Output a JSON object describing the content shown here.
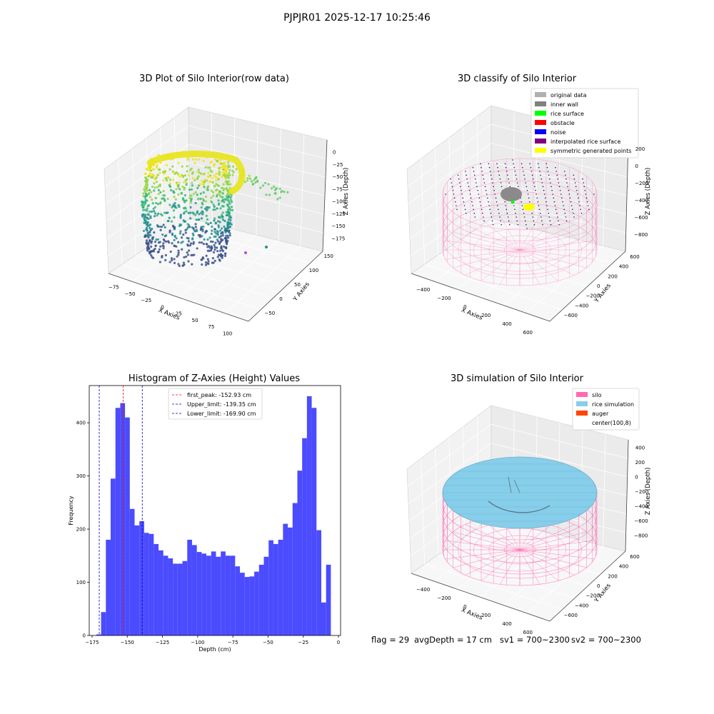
{
  "suptitle": "PJPJR01 2025-12-17 10:25:46",
  "panels": {
    "raw": {
      "title": "3D Plot of Silo Interior(row data)",
      "xlabel": "X Axies",
      "ylabel": "Y Axies",
      "zlabel": "Z Axies (Depth)",
      "xticks": [
        "−75",
        "−50",
        "−25",
        "0",
        "25",
        "50",
        "75",
        "100"
      ],
      "yticks": [
        "−50",
        "0",
        "50",
        "100",
        "150"
      ],
      "zticks": [
        "0",
        "−25",
        "−50",
        "−75",
        "−100",
        "−125",
        "−150",
        "−175"
      ]
    },
    "classify": {
      "title": "3D classify of Silo Interior",
      "xlabel": "X Axies",
      "ylabel": "Y Axies",
      "zlabel": "Z Axies (Depth)",
      "xticks": [
        "−400",
        "−200",
        "0",
        "200",
        "400",
        "600"
      ],
      "yticks": [
        "−600",
        "−400",
        "−200",
        "0",
        "200",
        "400",
        "600"
      ],
      "zticks": [
        "200",
        "0",
        "−200",
        "−400",
        "−600",
        "−800"
      ],
      "legend": [
        {
          "label": "original data",
          "color": "#b0b0b0"
        },
        {
          "label": "inner wall",
          "color": "#808080"
        },
        {
          "label": "rice surface",
          "color": "#00ff00"
        },
        {
          "label": "obstacle",
          "color": "#ff0000"
        },
        {
          "label": "noise",
          "color": "#0000ff"
        },
        {
          "label": "interpolated rice surface",
          "color": "#800080"
        },
        {
          "label": "symmetric generated points",
          "color": "#ffff00"
        }
      ]
    },
    "simulation": {
      "title": "3D simulation of Silo Interior",
      "xlabel": "X Axies",
      "ylabel": "Y Axies",
      "zlabel": "Z Axies (Depth)",
      "xticks": [
        "−400",
        "−200",
        "0",
        "200",
        "400",
        "600"
      ],
      "yticks": [
        "−600",
        "−400",
        "−200",
        "0",
        "200",
        "400",
        "600"
      ],
      "zticks": [
        "400",
        "200",
        "0",
        "−200",
        "−400",
        "−600",
        "−800"
      ],
      "legend": [
        {
          "label": "silo",
          "color": "#ff69b4"
        },
        {
          "label": "rice simulation",
          "color": "#87ceeb"
        },
        {
          "label": "auger",
          "color": "#ff4500"
        },
        {
          "label": "center(100,8)",
          "color": "#ffffff"
        }
      ]
    }
  },
  "status": {
    "flag": "flag = 29",
    "avg": "avgDepth = 17 cm",
    "sv1": "sv1 = 700~2300",
    "sv2": "sv2 = 700~2300"
  },
  "chart_data": {
    "type": "bar",
    "title": "Histogram of Z-Axies (Height) Values",
    "xlabel": "Depth (cm)",
    "ylabel": "Frequency",
    "xlim": [
      -177,
      1.5
    ],
    "ylim": [
      0,
      470
    ],
    "bar_color": "#4b4bff",
    "bin_start": -172,
    "bin_width": 3.4,
    "xticks": [
      -175,
      -150,
      -125,
      -100,
      -75,
      -50,
      -25,
      0
    ],
    "xtick_labels": [
      "−175",
      "−150",
      "−125",
      "−100",
      "−75",
      "−50",
      "−25",
      "0"
    ],
    "yticks": [
      0,
      100,
      200,
      300,
      400
    ],
    "values": [
      2,
      44,
      180,
      295,
      428,
      437,
      410,
      238,
      207,
      215,
      193,
      191,
      172,
      160,
      150,
      145,
      135,
      135,
      140,
      180,
      170,
      157,
      154,
      150,
      158,
      148,
      158,
      150,
      150,
      130,
      118,
      110,
      111,
      120,
      133,
      148,
      179,
      172,
      180,
      210,
      203,
      249,
      310,
      371,
      450,
      428,
      198,
      62,
      133
    ],
    "vlines": [
      {
        "name": "first_peak: -152.93 cm",
        "x": -152.93,
        "color": "#ff0000"
      },
      {
        "name": "Upper_limit: -139.35 cm",
        "x": -139.35,
        "color": "#0000cc"
      },
      {
        "name": "Lower_limit: -169.90 cm",
        "x": -169.9,
        "color": "#0000cc"
      }
    ],
    "legend_position": "top-center"
  }
}
